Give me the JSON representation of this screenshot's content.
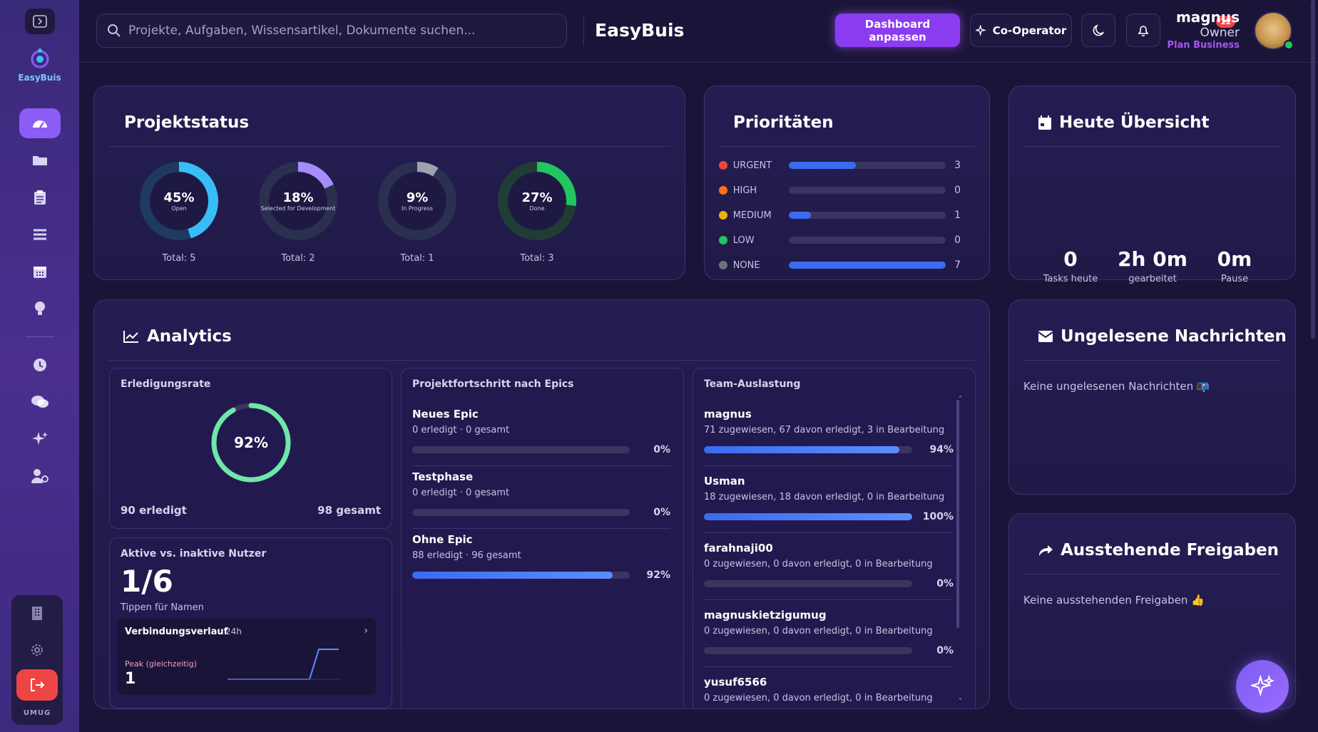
{
  "header": {
    "search_placeholder": "Projekte, Aufgaben, Wissensartikel, Dokumente suchen...",
    "brand": "EasyBuis",
    "customize_button": "Dashboard anpassen",
    "cooperator_button": "Co-Operator",
    "notification_count": "12",
    "user": {
      "name": "magnus",
      "role": "Owner",
      "plan": "Plan Business"
    }
  },
  "sidebar": {
    "logo_text": "EasyBuis",
    "footer_label": "UMUG",
    "items": [
      "dashboard-icon",
      "folder-icon",
      "clipboard-icon",
      "list-icon",
      "calendar-icon",
      "lightbulb-icon",
      "clock-icon",
      "chat-icon",
      "sparkle-icon",
      "user-settings-icon"
    ]
  },
  "projektstatus": {
    "title": "Projektstatus",
    "items": [
      {
        "pct": "45%",
        "label": "Open",
        "total": "Total: 5",
        "value": 0.45,
        "color": "#38bdf8"
      },
      {
        "pct": "18%",
        "label": "Selected for Development",
        "total": "Total: 2",
        "value": 0.18,
        "color": "#a78bfa"
      },
      {
        "pct": "9%",
        "label": "In Progress",
        "total": "Total: 1",
        "value": 0.09,
        "color": "#9ca3af"
      },
      {
        "pct": "27%",
        "label": "Done",
        "total": "Total: 3",
        "value": 0.27,
        "color": "#22c55e"
      }
    ]
  },
  "prioritaeten": {
    "title": "Prioritäten",
    "items": [
      {
        "name": "URGENT",
        "value": "3",
        "fraction": 0.43,
        "color": "#ef4444"
      },
      {
        "name": "HIGH",
        "value": "0",
        "fraction": 0,
        "color": "#f97316"
      },
      {
        "name": "MEDIUM",
        "value": "1",
        "fraction": 0.14,
        "color": "#eab308"
      },
      {
        "name": "LOW",
        "value": "0",
        "fraction": 0,
        "color": "#22c55e"
      },
      {
        "name": "NONE",
        "value": "7",
        "fraction": 1.0,
        "color": "#6b7280"
      }
    ]
  },
  "heute": {
    "title": "Heute Übersicht",
    "stats": [
      {
        "value": "0",
        "label": "Tasks heute"
      },
      {
        "value": "2h 0m",
        "label": "gearbeitet"
      },
      {
        "value": "0m",
        "label": "Pause"
      }
    ]
  },
  "analytics": {
    "title": "Analytics",
    "erledigungsrate": {
      "title": "Erledigungsrate",
      "pct": "92%",
      "value": 0.92,
      "done": "90 erledigt",
      "total": "98 gesamt"
    },
    "nutzer": {
      "title": "Aktive vs. inaktive Nutzer",
      "value": "1/6",
      "hint": "Tippen für Namen"
    },
    "verlauf": {
      "title": "Verbindungsverlauf",
      "period": "24h",
      "peak_label": "Peak (gleichzeitig)",
      "peak_value": "1"
    },
    "epics": {
      "title": "Projektfortschritt nach Epics",
      "items": [
        {
          "name": "Neues Epic",
          "meta": "0 erledigt · 0 gesamt",
          "pct": "0%",
          "value": 0
        },
        {
          "name": "Testphase",
          "meta": "0 erledigt · 0 gesamt",
          "pct": "0%",
          "value": 0
        },
        {
          "name": "Ohne Epic",
          "meta": "88 erledigt · 96 gesamt",
          "pct": "92%",
          "value": 0.92
        }
      ]
    },
    "team": {
      "title": "Team-Auslastung",
      "items": [
        {
          "name": "magnus",
          "meta": "71 zugewiesen, 67 davon erledigt, 3 in Bearbeitung",
          "pct": "94%",
          "value": 0.94
        },
        {
          "name": "Usman",
          "meta": "18 zugewiesen, 18 davon erledigt, 0 in Bearbeitung",
          "pct": "100%",
          "value": 1.0
        },
        {
          "name": "farahnaji00",
          "meta": "0 zugewiesen, 0 davon erledigt, 0 in Bearbeitung",
          "pct": "0%",
          "value": 0
        },
        {
          "name": "magnuskietzigumug",
          "meta": "0 zugewiesen, 0 davon erledigt, 0 in Bearbeitung",
          "pct": "0%",
          "value": 0
        },
        {
          "name": "yusuf6566",
          "meta": "0 zugewiesen, 0 davon erledigt, 0 in Bearbeitung"
        }
      ]
    }
  },
  "nachrichten": {
    "title": "Ungelesene Nachrichten",
    "empty": "Keine ungelesenen Nachrichten 📭"
  },
  "freigaben": {
    "title": "Ausstehende Freigaben",
    "empty": "Keine ausstehenden Freigaben 👍"
  }
}
